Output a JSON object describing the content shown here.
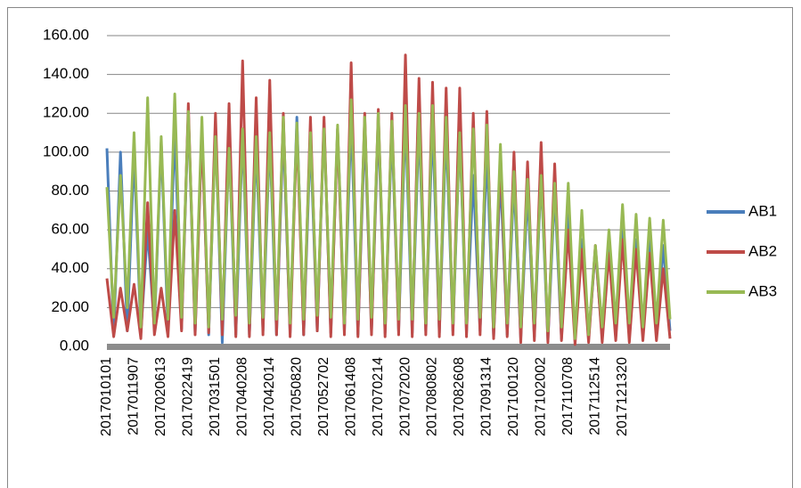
{
  "chart_data": {
    "type": "line",
    "categories": [
      "2017010101",
      null,
      null,
      null,
      "2017011907",
      null,
      null,
      null,
      "2017020613",
      null,
      null,
      null,
      "2017022419",
      null,
      null,
      null,
      "2017031501",
      null,
      null,
      null,
      "2017040208",
      null,
      null,
      null,
      "2017042014",
      null,
      null,
      null,
      "2017050820",
      null,
      null,
      null,
      "2017052702",
      null,
      null,
      null,
      "2017061408",
      null,
      null,
      null,
      "2017070214",
      null,
      null,
      null,
      "2017072020",
      null,
      null,
      null,
      "2017080802",
      null,
      null,
      null,
      "2017082608",
      null,
      null,
      null,
      "2017091314",
      null,
      null,
      null,
      "2017100120",
      null,
      null,
      null,
      "2017102002",
      null,
      null,
      null,
      "2017110708",
      null,
      null,
      null,
      "2017112514",
      null,
      null,
      null,
      "2017121320",
      null,
      null,
      null,
      null,
      null,
      null,
      null
    ],
    "series": [
      {
        "name": "AB1",
        "color": "#4a7ebb",
        "values": [
          102,
          6,
          100,
          8,
          100,
          7,
          60,
          9,
          105,
          8,
          112,
          9,
          120,
          7,
          112,
          6,
          112,
          2,
          105,
          6,
          110,
          6,
          104,
          8,
          108,
          6,
          112,
          7,
          118,
          6,
          107,
          8,
          115,
          7,
          112,
          8,
          118,
          6,
          112,
          8,
          115,
          7,
          112,
          8,
          118,
          7,
          115,
          8,
          115,
          7,
          112,
          8,
          110,
          7,
          88,
          8,
          100,
          5,
          88,
          6,
          85,
          4,
          80,
          5,
          88,
          3,
          80,
          4,
          70,
          3,
          55,
          4,
          50,
          4,
          52,
          5,
          60,
          5,
          55,
          6,
          58,
          6,
          52,
          8
        ]
      },
      {
        "name": "AB2",
        "color": "#be4b48",
        "values": [
          35,
          5,
          30,
          8,
          32,
          4,
          74,
          6,
          30,
          5,
          70,
          8,
          125,
          6,
          110,
          7,
          120,
          6,
          125,
          5,
          147,
          5,
          128,
          6,
          137,
          6,
          120,
          5,
          112,
          6,
          118,
          8,
          118,
          5,
          112,
          6,
          146,
          5,
          120,
          6,
          122,
          5,
          120,
          6,
          150,
          5,
          138,
          6,
          136,
          5,
          133,
          6,
          133,
          5,
          120,
          6,
          121,
          4,
          98,
          5,
          100,
          2,
          95,
          3,
          105,
          2,
          94,
          3,
          60,
          1,
          50,
          2,
          52,
          2,
          48,
          3,
          55,
          2,
          50,
          3,
          48,
          3,
          40,
          4
        ]
      },
      {
        "name": "AB3",
        "color": "#98b954",
        "values": [
          82,
          15,
          88,
          20,
          110,
          10,
          128,
          12,
          108,
          14,
          130,
          15,
          121,
          12,
          118,
          10,
          108,
          14,
          102,
          16,
          112,
          12,
          108,
          15,
          110,
          14,
          118,
          12,
          115,
          14,
          110,
          16,
          112,
          15,
          114,
          12,
          127,
          14,
          118,
          15,
          120,
          12,
          116,
          14,
          124,
          14,
          120,
          12,
          124,
          14,
          118,
          12,
          110,
          12,
          112,
          15,
          114,
          10,
          104,
          12,
          90,
          10,
          86,
          12,
          88,
          8,
          84,
          10,
          84,
          4,
          70,
          6,
          52,
          10,
          60,
          12,
          73,
          12,
          68,
          10,
          66,
          12,
          65,
          14
        ]
      }
    ],
    "ylim": [
      0,
      160
    ],
    "yticks": [
      {
        "value": 0,
        "label": "0.00"
      },
      {
        "value": 20,
        "label": "20.00"
      },
      {
        "value": 40,
        "label": "40.00"
      },
      {
        "value": 60,
        "label": "60.00"
      },
      {
        "value": 80,
        "label": "80.00"
      },
      {
        "value": 100,
        "label": "100.00"
      },
      {
        "value": 120,
        "label": "120.00"
      },
      {
        "value": 140,
        "label": "140.00"
      },
      {
        "value": 160,
        "label": "160.00"
      }
    ],
    "grid": true,
    "legend": "right"
  }
}
